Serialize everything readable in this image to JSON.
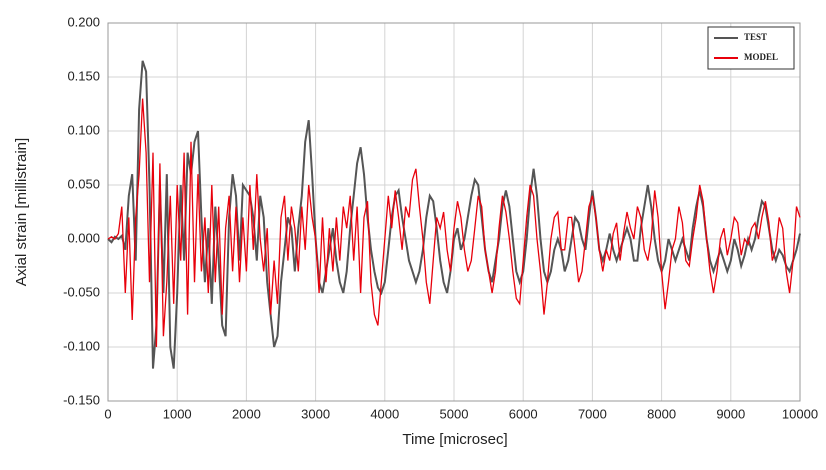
{
  "chart_data": {
    "type": "line",
    "xlabel": "Time [microsec]",
    "ylabel": "Axial strain [millistrain]",
    "x": [
      0,
      50,
      100,
      150,
      200,
      250,
      300,
      350,
      400,
      450,
      500,
      550,
      600,
      650,
      700,
      750,
      800,
      850,
      900,
      950,
      1000,
      1050,
      1100,
      1150,
      1200,
      1250,
      1300,
      1350,
      1400,
      1450,
      1500,
      1550,
      1600,
      1650,
      1700,
      1750,
      1800,
      1850,
      1900,
      1950,
      2000,
      2050,
      2100,
      2150,
      2200,
      2250,
      2300,
      2350,
      2400,
      2450,
      2500,
      2550,
      2600,
      2650,
      2700,
      2750,
      2800,
      2850,
      2900,
      2950,
      3000,
      3050,
      3100,
      3150,
      3200,
      3250,
      3300,
      3350,
      3400,
      3450,
      3500,
      3550,
      3600,
      3650,
      3700,
      3750,
      3800,
      3850,
      3900,
      3950,
      4000,
      4050,
      4100,
      4150,
      4200,
      4250,
      4300,
      4350,
      4400,
      4450,
      4500,
      4550,
      4600,
      4650,
      4700,
      4750,
      4800,
      4850,
      4900,
      4950,
      5000,
      5050,
      5100,
      5150,
      5200,
      5250,
      5300,
      5350,
      5400,
      5450,
      5500,
      5550,
      5600,
      5650,
      5700,
      5750,
      5800,
      5850,
      5900,
      5950,
      6000,
      6050,
      6100,
      6150,
      6200,
      6250,
      6300,
      6350,
      6400,
      6450,
      6500,
      6550,
      6600,
      6650,
      6700,
      6750,
      6800,
      6850,
      6900,
      6950,
      7000,
      7050,
      7100,
      7150,
      7200,
      7250,
      7300,
      7350,
      7400,
      7450,
      7500,
      7550,
      7600,
      7650,
      7700,
      7750,
      7800,
      7850,
      7900,
      7950,
      8000,
      8050,
      8100,
      8150,
      8200,
      8250,
      8300,
      8350,
      8400,
      8450,
      8500,
      8550,
      8600,
      8650,
      8700,
      8750,
      8800,
      8850,
      8900,
      8950,
      9000,
      9050,
      9100,
      9150,
      9200,
      9250,
      9300,
      9350,
      9400,
      9450,
      9500,
      9550,
      9600,
      9650,
      9700,
      9750,
      9800,
      9850,
      9900,
      9950,
      10000
    ],
    "series": [
      {
        "name": "TEST",
        "color": "#555555",
        "values": [
          0,
          -0.003,
          0.002,
          0,
          0.003,
          -0.01,
          0.04,
          0.06,
          -0.02,
          0.12,
          0.165,
          0.155,
          0.05,
          -0.12,
          -0.08,
          0.05,
          -0.05,
          0.06,
          -0.1,
          -0.12,
          -0.05,
          0.05,
          -0.02,
          0.08,
          0.06,
          0.09,
          0.1,
          0.02,
          -0.04,
          0.01,
          -0.06,
          0.03,
          -0.02,
          -0.08,
          -0.09,
          0.02,
          0.06,
          0.04,
          -0.02,
          0.05,
          0.045,
          0.04,
          0.02,
          -0.02,
          0.04,
          0.02,
          -0.04,
          -0.07,
          -0.1,
          -0.09,
          -0.04,
          -0.01,
          0.02,
          0.01,
          -0.03,
          0.01,
          0.04,
          0.09,
          0.11,
          0.06,
          0,
          -0.04,
          -0.05,
          -0.03,
          -0.01,
          0.01,
          -0.02,
          -0.04,
          -0.05,
          -0.03,
          0.01,
          0.04,
          0.07,
          0.085,
          0.06,
          0.02,
          -0.01,
          -0.03,
          -0.045,
          -0.05,
          -0.04,
          -0.01,
          0.02,
          0.04,
          0.045,
          0.02,
          0,
          -0.02,
          -0.03,
          -0.04,
          -0.03,
          -0.01,
          0.02,
          0.04,
          0.035,
          0.01,
          -0.02,
          -0.04,
          -0.05,
          -0.03,
          0,
          0.01,
          -0.01,
          0,
          0.02,
          0.04,
          0.055,
          0.05,
          0.02,
          -0.01,
          -0.03,
          -0.04,
          -0.02,
          0,
          0.03,
          0.045,
          0.03,
          0,
          -0.03,
          -0.04,
          -0.03,
          0,
          0.04,
          0.065,
          0.04,
          0,
          -0.03,
          -0.04,
          -0.03,
          -0.01,
          0,
          -0.01,
          -0.03,
          -0.02,
          0,
          0.02,
          0.015,
          0,
          -0.01,
          0.02,
          0.045,
          0.02,
          -0.01,
          -0.02,
          -0.01,
          0.005,
          -0.01,
          -0.02,
          -0.01,
          0,
          0.01,
          0,
          -0.02,
          -0.02,
          0.01,
          0.03,
          0.05,
          0.03,
          0,
          -0.02,
          -0.03,
          -0.02,
          0,
          -0.01,
          -0.02,
          -0.01,
          0,
          -0.01,
          -0.02,
          0.01,
          0.03,
          0.045,
          0.03,
          0,
          -0.02,
          -0.03,
          -0.02,
          -0.01,
          -0.02,
          -0.03,
          -0.02,
          0,
          -0.01,
          -0.025,
          -0.015,
          0,
          -0.01,
          0,
          0.02,
          0.035,
          0.03,
          0.01,
          -0.01,
          -0.02,
          -0.01,
          -0.015,
          -0.025,
          -0.03,
          -0.02,
          -0.01,
          0.005
        ]
      },
      {
        "name": "MODEL",
        "color": "#e8000b",
        "values": [
          0,
          0.002,
          0,
          0.005,
          0.03,
          -0.05,
          0.02,
          -0.075,
          0.02,
          0.06,
          0.13,
          0.08,
          -0.04,
          0.08,
          -0.1,
          0.07,
          -0.09,
          -0.04,
          0.04,
          -0.06,
          0.05,
          -0.02,
          0.08,
          -0.07,
          0.09,
          -0.04,
          0.06,
          -0.03,
          0.02,
          -0.05,
          0.05,
          -0.04,
          0.03,
          -0.07,
          0.01,
          0.04,
          -0.03,
          0.03,
          -0.04,
          0.02,
          -0.03,
          0.05,
          -0.01,
          0.06,
          0,
          -0.03,
          0.01,
          -0.07,
          -0.02,
          -0.06,
          0.02,
          0.04,
          -0.02,
          0.03,
          0.01,
          -0.03,
          0.03,
          -0.01,
          0.05,
          0.02,
          0,
          -0.05,
          0.02,
          -0.04,
          0.01,
          -0.03,
          0.02,
          -0.02,
          0.03,
          0.01,
          0.04,
          -0.02,
          0.03,
          -0.05,
          0.02,
          0.035,
          -0.04,
          -0.07,
          -0.08,
          -0.04,
          0,
          0.04,
          0.01,
          0.045,
          0.02,
          -0.01,
          0.03,
          0.02,
          0.055,
          0.065,
          0.03,
          0,
          -0.04,
          -0.06,
          -0.02,
          0.02,
          0.01,
          0.025,
          -0.01,
          -0.03,
          0.01,
          0.035,
          0.02,
          -0.01,
          -0.03,
          -0.02,
          0.01,
          0.04,
          0.03,
          -0.01,
          -0.03,
          -0.05,
          -0.03,
          0.01,
          0.04,
          0.025,
          0,
          -0.03,
          -0.055,
          -0.06,
          -0.02,
          0.02,
          0.05,
          0.04,
          0,
          -0.03,
          -0.07,
          -0.04,
          0,
          0.02,
          0.025,
          -0.01,
          -0.01,
          0.02,
          0.02,
          -0.01,
          -0.04,
          -0.03,
          0,
          0.03,
          0.04,
          0.02,
          -0.01,
          -0.03,
          -0.01,
          -0.02,
          0.005,
          0.015,
          -0.02,
          0.005,
          0.025,
          0.01,
          0,
          0.03,
          0.02,
          -0.01,
          -0.02,
          0,
          0.045,
          0.02,
          -0.03,
          -0.065,
          -0.04,
          -0.01,
          0,
          0.03,
          0.015,
          -0.02,
          -0.025,
          0,
          0.02,
          0.05,
          0.035,
          0,
          -0.03,
          -0.05,
          -0.03,
          0,
          0.01,
          -0.015,
          0,
          0.02,
          0.015,
          -0.015,
          0,
          -0.005,
          0.01,
          0.015,
          0,
          0.02,
          0.035,
          0.015,
          -0.02,
          -0.01,
          0.02,
          0.01,
          -0.03,
          -0.05,
          -0.02,
          0.03,
          0.02
        ]
      }
    ],
    "xlim": [
      0,
      10000
    ],
    "xticks": [
      0,
      1000,
      2000,
      3000,
      4000,
      5000,
      6000,
      7000,
      8000,
      9000,
      10000
    ],
    "ylim": [
      -0.15,
      0.2
    ],
    "yticks": [
      {
        "value": -0.15,
        "label": "-0.150"
      },
      {
        "value": -0.1,
        "label": "-0.100"
      },
      {
        "value": -0.05,
        "label": "-0.050"
      },
      {
        "value": 0,
        "label": "0.000"
      },
      {
        "value": 0.05,
        "label": "0.050"
      },
      {
        "value": 0.1,
        "label": "0.100"
      },
      {
        "value": 0.15,
        "label": "0.150"
      },
      {
        "value": 0.2,
        "label": "0.200"
      }
    ],
    "grid": true,
    "legend": "upper right"
  }
}
